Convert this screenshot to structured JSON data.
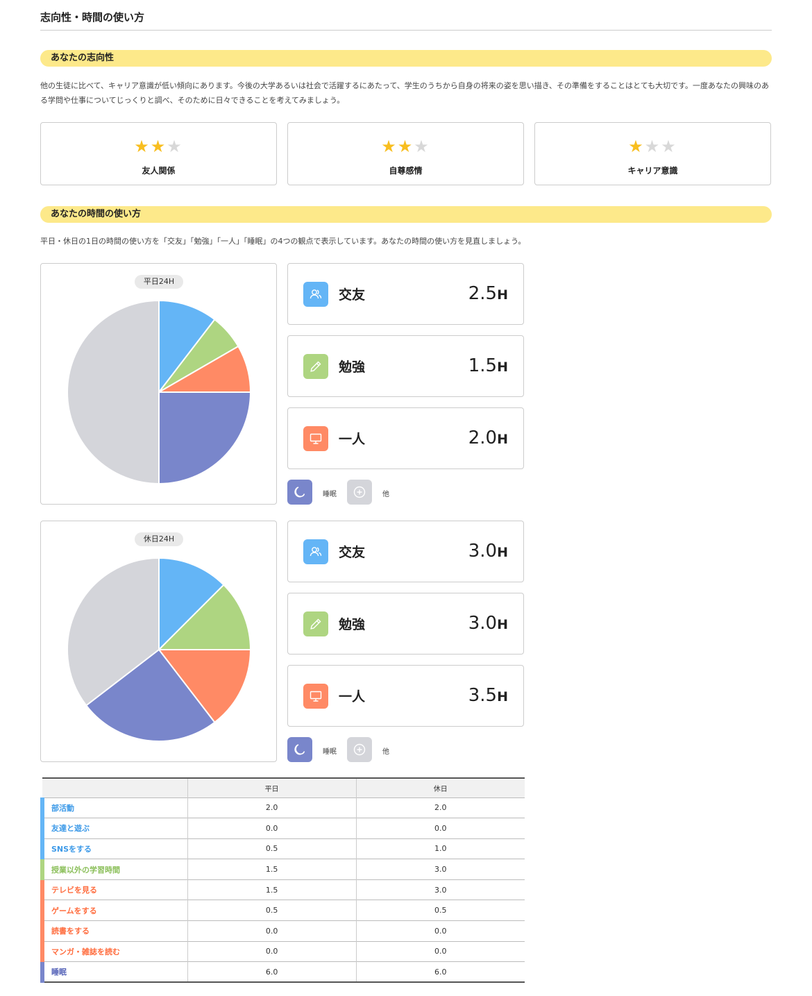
{
  "page_title": "志向性・時間の使い方",
  "orientation": {
    "header": "あなたの志向性",
    "description": "他の生徒に比べて、キャリア意識が低い傾向にあります。今後の大学あるいは社会で活躍するにあたって、学生のうちから自身の将来の姿を思い描き、その準備をすることはとても大切です。一度あなたの興味のある学問や仕事についてじっくりと調べ、そのために日々できることを考えてみましょう。",
    "ratings": [
      {
        "label": "友人関係",
        "stars": 2,
        "max": 3
      },
      {
        "label": "自尊感情",
        "stars": 2,
        "max": 3
      },
      {
        "label": "キャリア意識",
        "stars": 1,
        "max": 3
      }
    ]
  },
  "time_usage": {
    "header": "あなたの時間の使い方",
    "description": "平日・休日の1日の時間の使い方を「交友」「勉強」「一人」「睡眠」の4つの観点で表示しています。あなたの時間の使い方を見直しましょう。",
    "unit": "H",
    "legend": {
      "sleep": "睡眠",
      "other": "他"
    },
    "weekday": {
      "pill": "平日24H",
      "stats": [
        {
          "key": "friends",
          "label": "交友",
          "value": "2.5"
        },
        {
          "key": "study",
          "label": "勉強",
          "value": "1.5"
        },
        {
          "key": "alone",
          "label": "一人",
          "value": "2.0"
        }
      ]
    },
    "holiday": {
      "pill": "休日24H",
      "stats": [
        {
          "key": "friends",
          "label": "交友",
          "value": "3.0"
        },
        {
          "key": "study",
          "label": "勉強",
          "value": "3.0"
        },
        {
          "key": "alone",
          "label": "一人",
          "value": "3.5"
        }
      ]
    }
  },
  "colors": {
    "friends": "#64b5f6",
    "study": "#aed581",
    "alone": "#ff8a65",
    "sleep": "#7986cb",
    "other": "#d4d5da",
    "highlight": "#fde98a",
    "star_on": "#f8be1f",
    "star_off": "#d8d8d8"
  },
  "chart_data": [
    {
      "type": "pie",
      "title": "平日24H",
      "categories": [
        "交友",
        "勉強",
        "一人",
        "睡眠",
        "他"
      ],
      "values": [
        2.5,
        1.5,
        2.0,
        6.0,
        12.0
      ]
    },
    {
      "type": "pie",
      "title": "休日24H",
      "categories": [
        "交友",
        "勉強",
        "一人",
        "睡眠",
        "他"
      ],
      "values": [
        3.0,
        3.0,
        3.5,
        6.0,
        8.5
      ]
    }
  ],
  "table": {
    "headers": [
      "",
      "平日",
      "休日"
    ],
    "rows": [
      {
        "label": "部活動",
        "group": "friends",
        "weekday": "2.0",
        "holiday": "2.0"
      },
      {
        "label": "友達と遊ぶ",
        "group": "friends",
        "weekday": "0.0",
        "holiday": "0.0"
      },
      {
        "label": "SNSをする",
        "group": "friends",
        "weekday": "0.5",
        "holiday": "1.0"
      },
      {
        "label": "授業以外の学習時間",
        "group": "study",
        "weekday": "1.5",
        "holiday": "3.0"
      },
      {
        "label": "テレビを見る",
        "group": "alone",
        "weekday": "1.5",
        "holiday": "3.0"
      },
      {
        "label": "ゲームをする",
        "group": "alone",
        "weekday": "0.5",
        "holiday": "0.5"
      },
      {
        "label": "読書をする",
        "group": "alone",
        "weekday": "0.0",
        "holiday": "0.0"
      },
      {
        "label": "マンガ・雑誌を読む",
        "group": "alone",
        "weekday": "0.0",
        "holiday": "0.0"
      },
      {
        "label": "睡眠",
        "group": "sleep",
        "weekday": "6.0",
        "holiday": "6.0"
      }
    ]
  }
}
